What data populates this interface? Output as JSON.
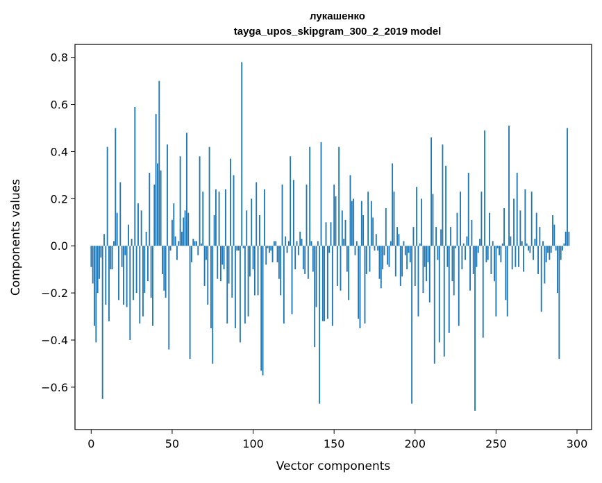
{
  "chart_data": {
    "type": "bar",
    "title": "лукашенко",
    "subtitle": "tayga_upos_skipgram_300_2_2019 model",
    "xlabel": "Vector components",
    "ylabel": "Components values",
    "xlim": [
      -10,
      309
    ],
    "ylim": [
      -0.78,
      0.855
    ],
    "xticks": [
      0,
      50,
      100,
      150,
      200,
      250,
      300
    ],
    "xtick_labels": [
      "0",
      "50",
      "100",
      "150",
      "200",
      "250",
      "300"
    ],
    "yticks": [
      -0.6,
      -0.4,
      -0.2,
      0.0,
      0.2,
      0.4,
      0.6,
      0.8
    ],
    "ytick_labels": [
      "−0.6",
      "−0.4",
      "−0.2",
      "0.0",
      "0.2",
      "0.4",
      "0.6",
      "0.8"
    ],
    "grid": false,
    "bar_color": "#1f77b4",
    "series": [
      {
        "name": "лукашенко",
        "values": [
          -0.09,
          -0.16,
          -0.34,
          -0.41,
          -0.2,
          -0.14,
          -0.05,
          -0.65,
          0.05,
          -0.25,
          0.42,
          -0.32,
          -0.1,
          -0.1,
          0.02,
          0.5,
          0.14,
          -0.23,
          0.27,
          -0.09,
          -0.25,
          -0.04,
          -0.26,
          0.09,
          -0.4,
          0.03,
          -0.23,
          0.59,
          -0.2,
          0.18,
          -0.33,
          0.15,
          -0.3,
          -0.2,
          0.06,
          -0.15,
          0.31,
          -0.22,
          -0.34,
          0.26,
          0.56,
          0.35,
          0.7,
          0.32,
          -0.12,
          -0.19,
          -0.22,
          0.43,
          -0.44,
          -0.02,
          0.11,
          0.18,
          0.04,
          -0.06,
          0.02,
          0.38,
          0.06,
          0.12,
          0.15,
          0.48,
          0.14,
          -0.48,
          -0.07,
          0.03,
          0.02,
          0.02,
          -0.04,
          0.38,
          0.01,
          0.23,
          -0.17,
          -0.06,
          -0.25,
          0.42,
          -0.35,
          -0.5,
          0.13,
          0.24,
          -0.14,
          0.23,
          -0.15,
          -0.08,
          -0.1,
          0.24,
          -0.33,
          -0.16,
          0.37,
          -0.22,
          0.3,
          -0.35,
          -0.02,
          -0.02,
          -0.41,
          0.78,
          -0.01,
          -0.33,
          0.15,
          -0.3,
          -0.13,
          0.2,
          -0.1,
          -0.21,
          0.27,
          -0.21,
          0.13,
          -0.53,
          -0.55,
          0.24,
          -0.08,
          -0.01,
          -0.03,
          -0.02,
          -0.07,
          0.02,
          0.02,
          -0.07,
          -0.14,
          -0.21,
          0.26,
          -0.33,
          0.04,
          -0.03,
          0.02,
          0.38,
          -0.29,
          0.28,
          -0.1,
          0.02,
          -0.04,
          0.06,
          0.03,
          -0.1,
          -0.12,
          0.26,
          -0.14,
          0.42,
          0.02,
          -0.11,
          -0.43,
          -0.26,
          0.02,
          -0.67,
          0.44,
          -0.32,
          -0.32,
          0.1,
          -0.31,
          -0.03,
          0.1,
          -0.34,
          0.26,
          0.21,
          -0.17,
          0.42,
          -0.19,
          0.15,
          0.03,
          0.11,
          -0.11,
          -0.23,
          0.3,
          0.19,
          0.2,
          -0.04,
          0.02,
          -0.31,
          -0.35,
          0.19,
          0.13,
          -0.33,
          -0.12,
          0.23,
          -0.11,
          0.19,
          0.12,
          -0.02,
          0.05,
          -0.02,
          -0.14,
          -0.18,
          -0.1,
          -0.04,
          0.16,
          -0.08,
          -0.09,
          0.02,
          0.35,
          0.23,
          -0.13,
          0.08,
          0.05,
          -0.17,
          -0.13,
          0.02,
          -0.04,
          -0.1,
          -0.03,
          -0.07,
          -0.67,
          0.08,
          -0.17,
          0.25,
          -0.3,
          0.01,
          0.2,
          -0.2,
          -0.09,
          -0.15,
          -0.07,
          -0.24,
          0.46,
          0.22,
          -0.5,
          0.08,
          -0.06,
          -0.41,
          0.07,
          0.43,
          -0.47,
          0.34,
          -0.09,
          -0.37,
          0.08,
          -0.15,
          -0.21,
          -0.01,
          0.14,
          -0.34,
          0.23,
          -0.1,
          0.01,
          -0.06,
          0.04,
          0.31,
          -0.19,
          0.11,
          -0.12,
          -0.7,
          -0.09,
          -0.03,
          0.03,
          0.23,
          -0.39,
          0.49,
          -0.07,
          -0.06,
          0.14,
          -0.12,
          0.02,
          -0.15,
          -0.3,
          -0.01,
          -0.04,
          -0.07,
          0.01,
          0.16,
          -0.23,
          -0.3,
          0.51,
          0.04,
          -0.1,
          0.2,
          -0.09,
          0.31,
          -0.09,
          0.15,
          0.02,
          -0.11,
          0.24,
          0.01,
          -0.02,
          -0.03,
          0.23,
          -0.06,
          0.03,
          0.14,
          -0.12,
          0.08,
          -0.28,
          0.02,
          -0.16,
          -0.07,
          -0.03,
          -0.06,
          -0.03,
          0.13,
          0.09,
          -0.02,
          -0.2,
          -0.48,
          -0.06,
          -0.02,
          0.01,
          0.06,
          0.5,
          0.06,
          0.0,
          0.0,
          0.0,
          0.0
        ]
      }
    ]
  }
}
